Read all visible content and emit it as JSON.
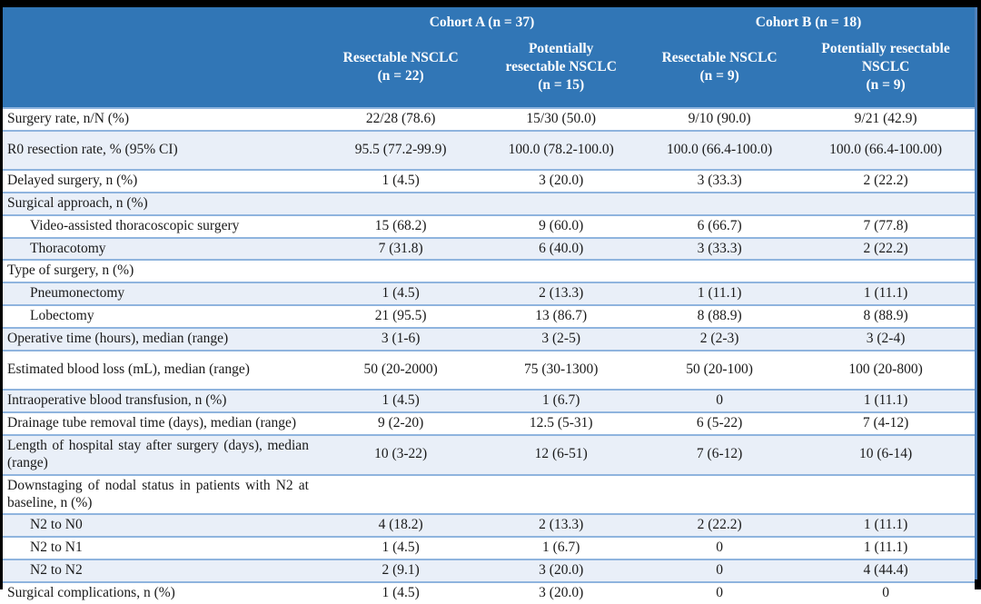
{
  "colors": {
    "header_bg": "#3176B6",
    "header_text": "#FFFFFF",
    "row_alt_bg": "#E9EFF8",
    "row_bg": "#FFFFFF",
    "separator": "#8FB4DE",
    "frame": "#000000",
    "edge_line": "#4F81BD",
    "text": "#1A1A1A"
  },
  "table": {
    "groups": [
      {
        "label": "Cohort A (n = 37)"
      },
      {
        "label": "Cohort B (n = 18)"
      }
    ],
    "columns": [
      {
        "label": "Resectable NSCLC\n(n = 22)"
      },
      {
        "label": "Potentially\nresectable NSCLC\n(n = 15)"
      },
      {
        "label": "Resectable NSCLC\n(n = 9)"
      },
      {
        "label": "Potentially resectable\nNSCLC\n(n = 9)"
      }
    ],
    "rows": [
      {
        "label": "Surgery rate, n/N (%)",
        "indent": false,
        "tall": false,
        "values": [
          "22/28 (78.6)",
          "15/30 (50.0)",
          "9/10 (90.0)",
          "9/21 (42.9)"
        ]
      },
      {
        "label": "R0 resection rate, % (95% CI)",
        "indent": false,
        "tall": true,
        "values": [
          "95.5 (77.2-99.9)",
          "100.0 (78.2-100.0)",
          "100.0 (66.4-100.0)",
          "100.0 (66.4-100.00)"
        ]
      },
      {
        "label": "Delayed surgery, n (%)",
        "indent": false,
        "tall": false,
        "values": [
          "1 (4.5)",
          "3 (20.0)",
          "3 (33.3)",
          "2 (22.2)"
        ]
      },
      {
        "label": "Surgical approach, n (%)",
        "indent": false,
        "tall": false,
        "values": [
          "",
          "",
          "",
          ""
        ]
      },
      {
        "label": "Video-assisted thoracoscopic surgery",
        "indent": true,
        "tall": false,
        "values": [
          "15 (68.2)",
          "9 (60.0)",
          "6 (66.7)",
          "7 (77.8)"
        ]
      },
      {
        "label": "Thoracotomy",
        "indent": true,
        "tall": false,
        "values": [
          "7 (31.8)",
          "6 (40.0)",
          "3 (33.3)",
          "2 (22.2)"
        ]
      },
      {
        "label": "Type of surgery, n (%)",
        "indent": false,
        "tall": false,
        "values": [
          "",
          "",
          "",
          ""
        ]
      },
      {
        "label": "Pneumonectomy",
        "indent": true,
        "tall": false,
        "values": [
          "1 (4.5)",
          "2 (13.3)",
          "1 (11.1)",
          "1 (11.1)"
        ]
      },
      {
        "label": "Lobectomy",
        "indent": true,
        "tall": false,
        "values": [
          "21 (95.5)",
          "13 (86.7)",
          "8 (88.9)",
          "8 (88.9)"
        ]
      },
      {
        "label": "Operative time (hours), median (range)",
        "indent": false,
        "tall": false,
        "values": [
          "3 (1-6)",
          "3 (2-5)",
          "2 (2-3)",
          "3 (2-4)"
        ]
      },
      {
        "label": "Estimated blood loss (mL), median (range)",
        "indent": false,
        "tall": true,
        "values": [
          "50 (20-2000)",
          "75 (30-1300)",
          "50 (20-100)",
          "100 (20-800)"
        ]
      },
      {
        "label": "Intraoperative blood transfusion, n (%)",
        "indent": false,
        "tall": false,
        "values": [
          "1 (4.5)",
          "1 (6.7)",
          "0",
          "1 (11.1)"
        ]
      },
      {
        "label": "Drainage tube removal time (days), median (range)",
        "indent": false,
        "tall": false,
        "values": [
          "9 (2-20)",
          "12.5 (5-31)",
          "6 (5-22)",
          "7 (4-12)"
        ]
      },
      {
        "label": "Length of hospital stay after surgery (days), median (range)",
        "indent": false,
        "tall": false,
        "values": [
          "10 (3-22)",
          "12 (6-51)",
          "7 (6-12)",
          "10 (6-14)"
        ]
      },
      {
        "label": "Downstaging of nodal status in patients with N2 at baseline, n (%)",
        "indent": false,
        "tall": false,
        "values": [
          "",
          "",
          "",
          ""
        ]
      },
      {
        "label": "N2 to N0",
        "indent": true,
        "tall": false,
        "values": [
          "4 (18.2)",
          "2 (13.3)",
          "2 (22.2)",
          "1 (11.1)"
        ]
      },
      {
        "label": "N2 to N1",
        "indent": true,
        "tall": false,
        "values": [
          "1 (4.5)",
          "1 (6.7)",
          "0",
          "1 (11.1)"
        ]
      },
      {
        "label": "N2 to N2",
        "indent": true,
        "tall": false,
        "values": [
          "2 (9.1)",
          "3 (20.0)",
          "0",
          "4 (44.4)"
        ]
      },
      {
        "label": "Surgical complications, n (%)",
        "indent": false,
        "tall": false,
        "values": [
          "1 (4.5)",
          "3 (20.0)",
          "0",
          "0"
        ]
      }
    ]
  }
}
